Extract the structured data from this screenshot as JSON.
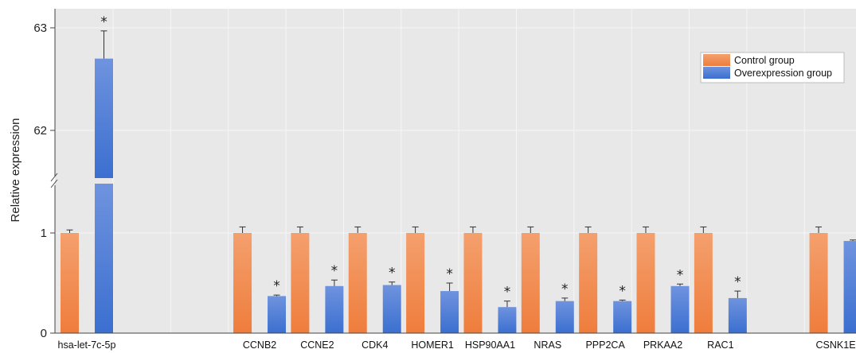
{
  "chart_data": {
    "type": "bar",
    "ylabel": "Relative expression",
    "y_axis_break": true,
    "yticks": [
      "0",
      "1",
      "62",
      "63"
    ],
    "categories": [
      "hsa-let-7c-5p",
      "",
      "",
      "CCNB2",
      "CCNE2",
      "CDK4",
      "HOMER1",
      "HSP90AA1",
      "NRAS",
      "PPP2CA",
      "PRKAA2",
      "RAC1",
      "",
      "CSNK1E"
    ],
    "series": [
      {
        "name": "Control group",
        "color": "#ef7d3c",
        "values": [
          1,
          null,
          null,
          1,
          1,
          1,
          1,
          1,
          1,
          1,
          1,
          1,
          null,
          1
        ],
        "errors": [
          0.03,
          null,
          null,
          0.06,
          0.06,
          0.06,
          0.06,
          0.06,
          0.06,
          0.06,
          0.06,
          0.06,
          null,
          0.06
        ]
      },
      {
        "name": "Overexpression group",
        "color": "#3b6fd0",
        "values": [
          62.7,
          null,
          null,
          0.37,
          0.47,
          0.48,
          0.42,
          0.26,
          0.32,
          0.32,
          0.47,
          0.35,
          null,
          0.92
        ],
        "errors": [
          0.27,
          null,
          null,
          0.01,
          0.06,
          0.03,
          0.08,
          0.06,
          0.03,
          0.01,
          0.02,
          0.07,
          null,
          0.01
        ]
      }
    ],
    "significance": [
      "*",
      "",
      "",
      "*",
      "*",
      "*",
      "*",
      "*",
      "*",
      "*",
      "*",
      "*",
      "",
      ""
    ],
    "legend_position": "top-right",
    "grid": true
  }
}
